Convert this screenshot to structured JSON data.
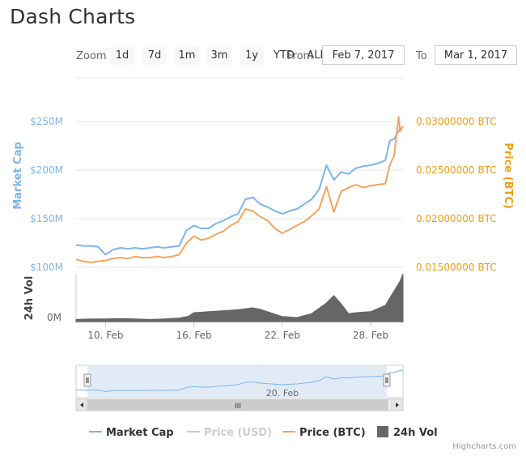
{
  "page": {
    "title": "Dash Charts"
  },
  "range_selector": {
    "zoom_label": "Zoom",
    "buttons": [
      "1d",
      "7d",
      "1m",
      "3m",
      "1y",
      "YTD",
      "ALL"
    ],
    "from_label": "From",
    "from_value": "Feb 7, 2017",
    "to_label": "To",
    "to_value": "Mar 1, 2017"
  },
  "credits": "Highcharts.com",
  "colors": {
    "market_cap": "#7cb5ec",
    "price_usd": "#cccccc",
    "price_btc": "#f7a35c",
    "price_btc_axis": "#f39c12",
    "volume": "#666666",
    "navigator_fill": "#dce8f5",
    "navigator_line": "#7cb5ec"
  },
  "chart_data": {
    "type": "line",
    "y_axes": {
      "left_top": {
        "title": "Market Cap",
        "ticks": [
          "$100M",
          "$150M",
          "$200M",
          "$250M"
        ],
        "tick_values": [
          100,
          150,
          200,
          250
        ],
        "range": [
          100,
          250
        ],
        "unit": "M USD"
      },
      "right_top": {
        "title": "Price (BTC)",
        "ticks": [
          "0.01500000 BTC",
          "0.02000000 BTC",
          "0.02500000 BTC",
          "0.03000000 BTC"
        ],
        "tick_values": [
          0.015,
          0.02,
          0.025,
          0.03
        ],
        "range": [
          0.015,
          0.03
        ]
      },
      "left_bottom": {
        "title": "24h Vol",
        "ticks": [
          "0M"
        ]
      }
    },
    "x_axis": {
      "ticks": [
        "10. Feb",
        "16. Feb",
        "22. Feb",
        "28. Feb"
      ],
      "tick_days": [
        10,
        16,
        22,
        28
      ],
      "range_days": [
        8,
        30.2
      ]
    },
    "navigator": {
      "label": "20. Feb",
      "label_day": 20,
      "range_days": [
        8,
        30.2
      ],
      "scrollbar_label": "III"
    },
    "series": [
      {
        "name": "Market Cap",
        "x": [
          8.0,
          8.5,
          9.0,
          9.5,
          10.0,
          10.5,
          11.0,
          11.5,
          12.0,
          12.5,
          13.0,
          13.5,
          14.0,
          14.5,
          15.0,
          15.5,
          16.0,
          16.5,
          17.0,
          17.5,
          18.0,
          18.5,
          19.0,
          19.5,
          20.0,
          20.5,
          21.0,
          21.5,
          22.0,
          22.5,
          23.0,
          23.5,
          24.0,
          24.5,
          25.0,
          25.5,
          26.0,
          26.5,
          27.0,
          27.5,
          28.0,
          28.5,
          29.0,
          29.3,
          29.6,
          29.9,
          30.2
        ],
        "values": [
          123,
          122,
          122,
          121,
          113,
          118,
          120,
          119,
          120,
          119,
          120,
          121,
          120,
          121,
          122,
          138,
          143,
          140,
          140,
          145,
          148,
          152,
          155,
          170,
          172,
          165,
          162,
          158,
          155,
          158,
          160,
          165,
          170,
          180,
          205,
          190,
          198,
          196,
          202,
          204,
          205,
          207,
          210,
          230,
          232,
          240,
          245
        ]
      },
      {
        "name": "Price (USD)",
        "x": [],
        "values": []
      },
      {
        "name": "Price (BTC)",
        "x": [
          8.0,
          8.5,
          9.0,
          9.5,
          10.0,
          10.5,
          11.0,
          11.5,
          12.0,
          12.5,
          13.0,
          13.5,
          14.0,
          14.5,
          15.0,
          15.5,
          16.0,
          16.5,
          17.0,
          17.5,
          18.0,
          18.5,
          19.0,
          19.5,
          20.0,
          20.5,
          21.0,
          21.5,
          22.0,
          22.5,
          23.0,
          23.5,
          24.0,
          24.5,
          25.0,
          25.5,
          26.0,
          26.5,
          27.0,
          27.5,
          28.0,
          28.5,
          29.0,
          29.3,
          29.6,
          29.9,
          30.0,
          30.2
        ],
        "values": [
          0.0158,
          0.0156,
          0.0155,
          0.0156,
          0.0157,
          0.0159,
          0.016,
          0.0159,
          0.0161,
          0.016,
          0.016,
          0.0161,
          0.016,
          0.0161,
          0.0163,
          0.0175,
          0.0182,
          0.0178,
          0.018,
          0.0184,
          0.0187,
          0.0193,
          0.0197,
          0.021,
          0.0208,
          0.0202,
          0.0198,
          0.019,
          0.0185,
          0.0189,
          0.0193,
          0.0197,
          0.0203,
          0.021,
          0.0233,
          0.0207,
          0.0228,
          0.0232,
          0.0235,
          0.0232,
          0.0234,
          0.0235,
          0.0236,
          0.0255,
          0.0265,
          0.0305,
          0.029,
          0.0295
        ]
      },
      {
        "name": "24h Vol",
        "type": "area",
        "x": [
          8.0,
          9.0,
          10.0,
          11.0,
          12.0,
          13.0,
          14.0,
          15.0,
          15.6,
          16.0,
          17.0,
          18.0,
          19.0,
          20.0,
          20.5,
          21.0,
          22.0,
          23.0,
          24.0,
          25.0,
          25.5,
          26.0,
          26.5,
          27.0,
          28.0,
          29.0,
          29.5,
          30.0,
          30.2
        ],
        "values": [
          0.06,
          0.07,
          0.07,
          0.08,
          0.07,
          0.06,
          0.07,
          0.09,
          0.12,
          0.2,
          0.22,
          0.24,
          0.26,
          0.3,
          0.27,
          0.22,
          0.12,
          0.1,
          0.18,
          0.4,
          0.55,
          0.38,
          0.18,
          0.2,
          0.22,
          0.35,
          0.6,
          0.85,
          1.0
        ]
      }
    ],
    "legend": {
      "position": "bottom-center",
      "items": [
        "Market Cap",
        "Price (USD)",
        "Price (BTC)",
        "24h Vol"
      ]
    },
    "grid": true
  }
}
